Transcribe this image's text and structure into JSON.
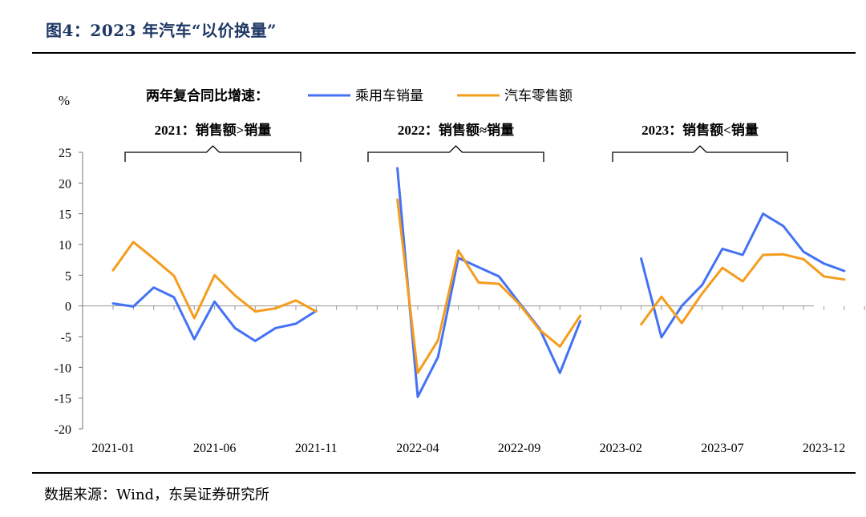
{
  "figure": {
    "title": "图4：2023 年汽车“以价换量”",
    "source": "数据来源：Wind，东吴证券研究所"
  },
  "chart_data": {
    "type": "line",
    "ylabel": "%",
    "ylim": [
      -20,
      25
    ],
    "yticks": [
      25,
      20,
      15,
      10,
      5,
      0,
      -5,
      -10,
      -15,
      -20
    ],
    "xtick_labels": [
      "2021-01",
      "2021-06",
      "2021-11",
      "2022-04",
      "2022-09",
      "2023-02",
      "2023-07",
      "2023-12"
    ],
    "legend_title": "两年复合同比增速：",
    "legend_position": "top",
    "grid": false,
    "groups": [
      {
        "label": "2021：销售额>销量",
        "months": [
          "2021-01",
          "2021-02",
          "2021-03",
          "2021-04",
          "2021-05",
          "2021-06",
          "2021-07",
          "2021-08",
          "2021-09",
          "2021-10",
          "2021-11",
          "2021-12"
        ]
      },
      {
        "label": "2022：销售额≈销量",
        "months": [
          "2022-01",
          "2022-02",
          "2022-03",
          "2022-04",
          "2022-05",
          "2022-06",
          "2022-07",
          "2022-08",
          "2022-09",
          "2022-10",
          "2022-11",
          "2022-12"
        ]
      },
      {
        "label": "2023：销售额<销量",
        "months": [
          "2023-01",
          "2023-02",
          "2023-03",
          "2023-04",
          "2023-05",
          "2023-06",
          "2023-07",
          "2023-08",
          "2023-09",
          "2023-10",
          "2023-11",
          "2023-12"
        ]
      }
    ],
    "series": [
      {
        "name": "乘用车销量",
        "color": "#4472f4",
        "segments": [
          [
            0.4,
            -0.1,
            3.0,
            1.4,
            -5.4,
            0.7,
            -3.6,
            -5.7,
            -3.6,
            -2.9,
            -0.8
          ],
          [
            22.4,
            -14.8,
            -8.3,
            7.8,
            6.3,
            4.8,
            0.5,
            -3.7,
            -10.9,
            -2.5
          ],
          [
            7.7,
            -5.1,
            0.0,
            3.4,
            9.3,
            8.3,
            15.0,
            13.0,
            8.8,
            6.9,
            5.7
          ]
        ]
      },
      {
        "name": "汽车零售额",
        "color": "#f59c1c",
        "segments": [
          [
            5.8,
            10.4,
            7.7,
            4.9,
            -2.0,
            5.0,
            1.7,
            -0.9,
            -0.4,
            0.9,
            -0.9
          ],
          [
            17.3,
            -10.9,
            -5.6,
            9.0,
            3.8,
            3.6,
            0.3,
            -3.9,
            -6.6,
            -1.6
          ],
          [
            -3.0,
            1.5,
            -2.8,
            2.0,
            6.2,
            4.0,
            8.3,
            8.4,
            7.6,
            4.8,
            4.3
          ]
        ]
      }
    ]
  }
}
